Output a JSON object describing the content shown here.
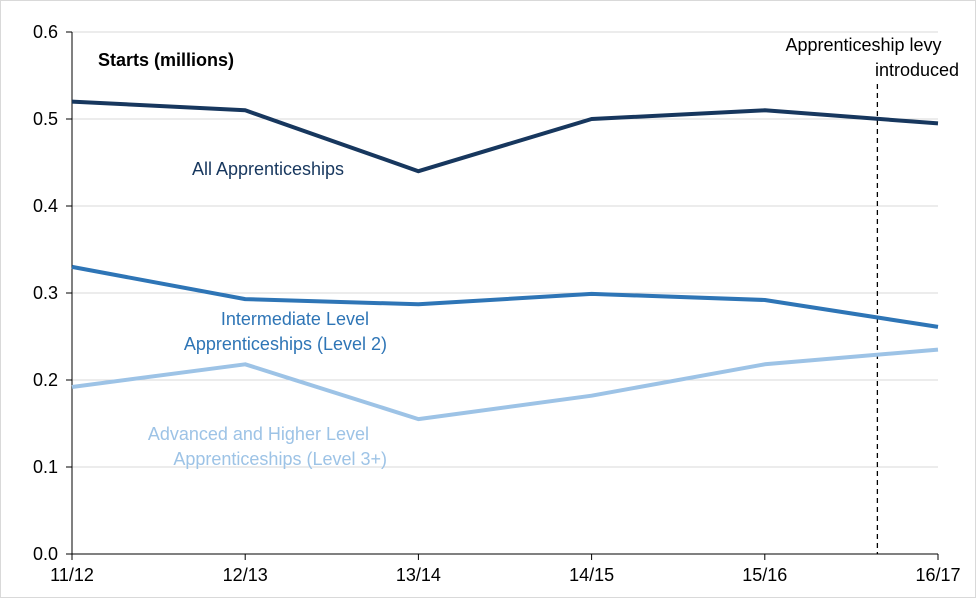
{
  "chart_data": {
    "type": "line",
    "title": "",
    "ylabel": "Starts (millions)",
    "xlabel": "",
    "categories": [
      "11/12",
      "12/13",
      "13/14",
      "14/15",
      "15/16",
      "16/17"
    ],
    "ylim": [
      0,
      0.6
    ],
    "yticks": [
      "0.0",
      "0.1",
      "0.2",
      "0.3",
      "0.4",
      "0.5",
      "0.6"
    ],
    "grid": true,
    "series": [
      {
        "name": "All  Apprenticeships",
        "values": [
          0.52,
          0.51,
          0.44,
          0.5,
          0.51,
          0.495
        ],
        "color": "#17375e"
      },
      {
        "name": "Intermediate Level Apprenticeships (Level 2)",
        "values": [
          0.33,
          0.293,
          0.287,
          0.299,
          0.292,
          0.261
        ],
        "color": "#2e75b6"
      },
      {
        "name": "Advanced and Higher Level Apprenticeships (Level 3+)",
        "values": [
          0.192,
          0.218,
          0.155,
          0.182,
          0.218,
          0.235
        ],
        "color": "#9dc3e6"
      }
    ],
    "labels": {
      "all": [
        "All  Apprenticeships"
      ],
      "intermediate": [
        "Intermediate Level",
        "Apprenticeships (Level 2)"
      ],
      "advanced": [
        "Advanced and Higher Level",
        "Apprenticeships (Level 3+)"
      ]
    },
    "annotation": {
      "text_lines": [
        "Apprenticeship levy",
        "introduced"
      ],
      "x_position": 4.65
    }
  }
}
